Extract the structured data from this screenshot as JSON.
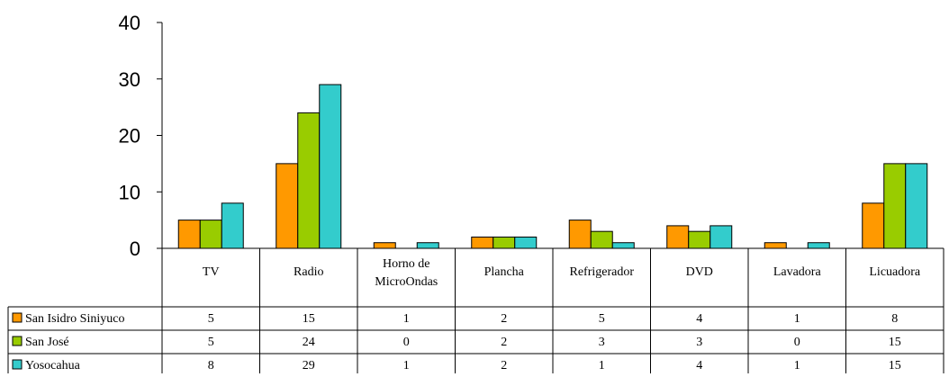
{
  "chart_data": {
    "type": "bar",
    "categories": [
      "TV",
      "Radio",
      "Horno de MicroOndas",
      "Plancha",
      "Refrigerador",
      "DVD",
      "Lavadora",
      "Licuadora"
    ],
    "category_lines": [
      [
        "TV"
      ],
      [
        "Radio"
      ],
      [
        "Horno de",
        "MicroOndas"
      ],
      [
        "Plancha"
      ],
      [
        "Refrigerador"
      ],
      [
        "DVD"
      ],
      [
        "Lavadora"
      ],
      [
        "Licuadora"
      ]
    ],
    "series": [
      {
        "name": "San Isidro Siniyuco",
        "color": "#ff9900",
        "values": [
          5,
          15,
          1,
          2,
          5,
          4,
          1,
          8
        ]
      },
      {
        "name": "San José",
        "color": "#99cc00",
        "values": [
          5,
          24,
          0,
          2,
          3,
          3,
          0,
          15
        ]
      },
      {
        "name": "Yosocahua",
        "color": "#33cccc",
        "values": [
          8,
          29,
          1,
          2,
          1,
          4,
          1,
          15
        ]
      }
    ],
    "yticks": [
      0,
      10,
      20,
      30,
      40
    ],
    "ylim": [
      0,
      40
    ],
    "legend": "data-table",
    "grid": false
  }
}
